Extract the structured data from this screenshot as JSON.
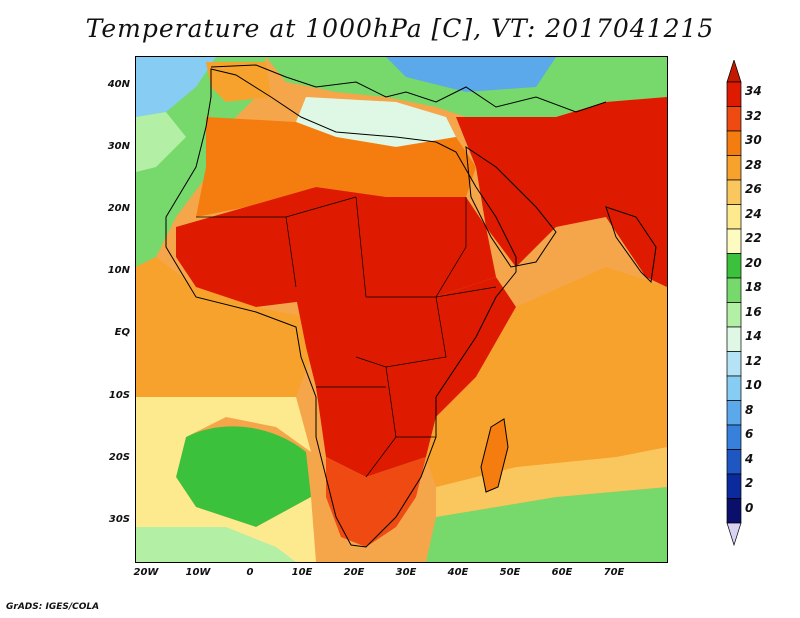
{
  "title": "Temperature at 1000hPa [C], VT: 2017041215",
  "credit": "GrADS: IGES/COLA",
  "map": {
    "lat_labels": [
      "40N",
      "30N",
      "20N",
      "10N",
      "EQ",
      "10S",
      "20S",
      "30S"
    ],
    "lon_labels": [
      "20W",
      "10W",
      "0",
      "10E",
      "20E",
      "30E",
      "40E",
      "50E",
      "60E",
      "70E"
    ]
  },
  "colorbar": {
    "labels": [
      "34",
      "32",
      "30",
      "28",
      "26",
      "24",
      "22",
      "20",
      "18",
      "16",
      "14",
      "12",
      "10",
      "8",
      "6",
      "4",
      "2",
      "0"
    ],
    "colors": [
      "#de1b00",
      "#ee4a12",
      "#f57d0f",
      "#f6a22c",
      "#fac75e",
      "#fde98e",
      "#fdfbc0",
      "#3cc13c",
      "#77d96b",
      "#b4efa6",
      "#dff8e6",
      "#b5e3f5",
      "#87ccf2",
      "#5ba8ea",
      "#3781dc",
      "#1e56c2",
      "#0b2a9b",
      "#0a0f6b"
    ],
    "top_arrow_color": "#c21900",
    "bottom_arrow_color": "#d9d2f2"
  }
}
